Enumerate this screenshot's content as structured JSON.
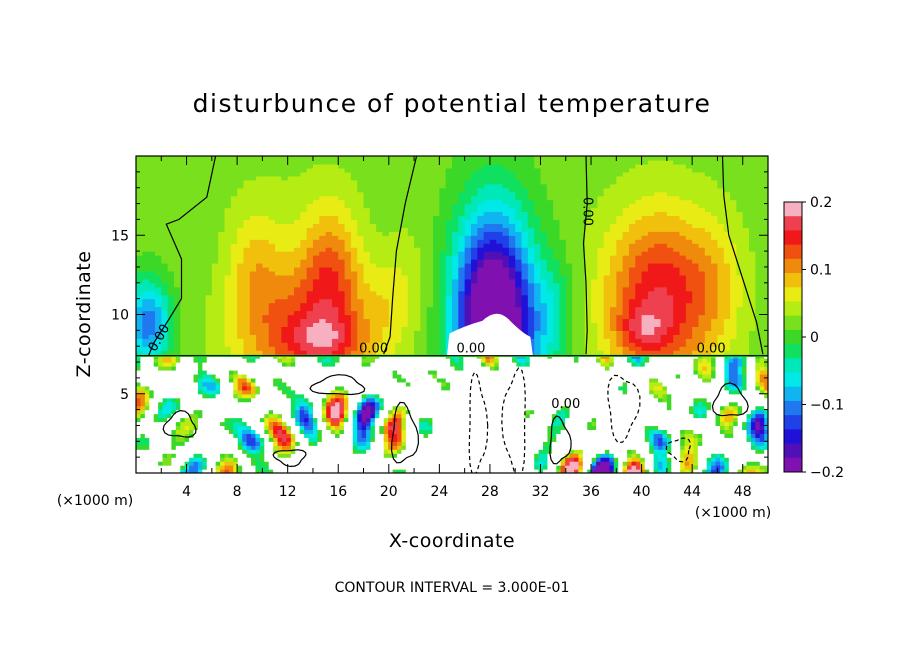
{
  "chart_data": {
    "type": "heatmap",
    "title": "disturbunce of potential temperature",
    "xlabel": "X-coordinate",
    "ylabel": "Z-coordinate",
    "x_unit_left": "(×1000 m)",
    "x_unit_right": "(×1000 m)",
    "xlim": [
      0,
      50
    ],
    "ylim": [
      0,
      20
    ],
    "xticks": [
      "4",
      "8",
      "12",
      "16",
      "20",
      "24",
      "28",
      "32",
      "36",
      "40",
      "44",
      "48"
    ],
    "yticks": [
      "5",
      "10",
      "15"
    ],
    "colorbar": {
      "min": -0.2,
      "max": 0.2,
      "ticks": [
        "0.2",
        "0.1",
        "0",
        "−0.1",
        "−0.2"
      ],
      "colors": [
        "#f7b0c0",
        "#ef4050",
        "#f01818",
        "#f05010",
        "#f08a0c",
        "#f0c00c",
        "#e8ec14",
        "#b4ec14",
        "#78e01c",
        "#3cd828",
        "#10e060",
        "#00e8b8",
        "#00e8e8",
        "#10b4f0",
        "#2078f0",
        "#2040e8",
        "#2010d8",
        "#5010b8",
        "#8010b0"
      ]
    },
    "contour_labels": [
      "0.00",
      "0.00",
      "0.00",
      "0.00",
      "0.00",
      "0.00"
    ],
    "footer": "CONTOUR INTERVAL = 3.000E-01"
  }
}
